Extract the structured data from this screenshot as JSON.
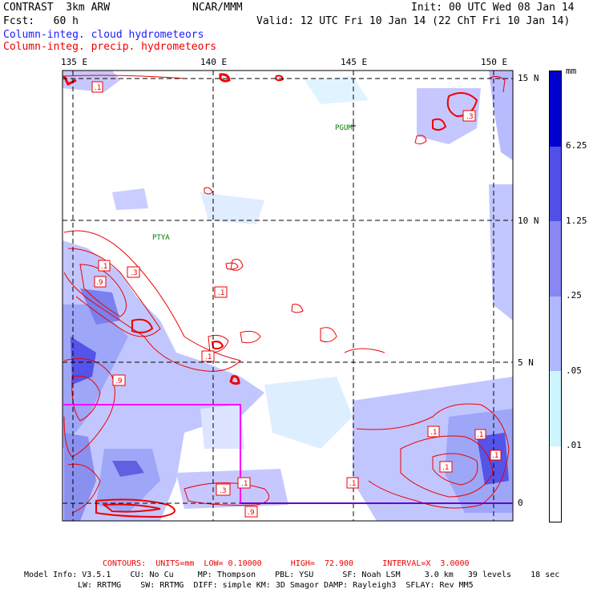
{
  "header": {
    "model": "CONTRAST  3km ARW",
    "org": "NCAR/MMM",
    "init": "Init: 00 UTC Wed 08 Jan 14",
    "fcst": "Fcst:   60 h",
    "valid": "Valid: 12 UTC Fri 10 Jan 14 (22 ChT Fri 10 Jan 14)",
    "field1": "Column-integ. cloud hydrometeors",
    "field2": "Column-integ. precip. hydrometeors"
  },
  "colors": {
    "cloud": "#1a1aff",
    "precip": "#ee0000",
    "box": "#ff00ff",
    "line": "#6600cc"
  },
  "map": {
    "lon_labels": [
      "135 E",
      "140 E",
      "145 E",
      "150 E"
    ],
    "lat_labels": [
      "15 N",
      "10 N",
      "5 N",
      "0"
    ],
    "stations": [
      "PGUM",
      "PTYA"
    ],
    "contour_labels": [
      ".1",
      ".3",
      ".1",
      ".3",
      ".9",
      ".1",
      ".1",
      ".9",
      ".1",
      ".1",
      ".3",
      ".9",
      ".1",
      ".1",
      ".1",
      ".1"
    ]
  },
  "colorbar": {
    "unit": "mm",
    "levels": [
      ".01",
      ".05",
      ".25",
      "1.25",
      "6.25"
    ],
    "colors": [
      "#ffffff",
      "#ccf5ff",
      "#b0b8ff",
      "#8888f0",
      "#5050e8",
      "#0000cc"
    ]
  },
  "footer": {
    "contours": "CONTOURS:  UNITS=mm  LOW= 0.10000      HIGH=  72.900      INTERVAL=X  3.0000",
    "info1": "Model Info: V3.5.1    CU: No Cu     MP: Thompson    PBL: YSU      SF: Noah LSM     3.0 km   39 levels    18 sec",
    "info2": "LW: RRTMG    SW: RRTMG  DIFF: simple KM: 3D Smagor DAMP: Rayleigh3  SFLAY: Rev MM5"
  }
}
